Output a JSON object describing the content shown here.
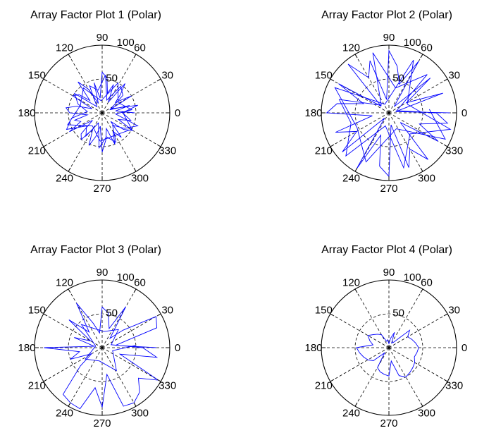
{
  "chart_data": [
    {
      "type": "polar",
      "title": "Array Factor Plot 1 (Polar)",
      "rlim": [
        0,
        100
      ],
      "radial_ticks": [
        50,
        100
      ],
      "angle_ticks": [
        0,
        30,
        60,
        90,
        120,
        150,
        180,
        210,
        240,
        270,
        300,
        330
      ],
      "grid": true,
      "line_color": "#0000ff",
      "series": [
        {
          "theta_deg": [
            0,
            8,
            15,
            22,
            30,
            38,
            45,
            52,
            60,
            68,
            75,
            82,
            90,
            98,
            105,
            112,
            120,
            128,
            135,
            142,
            150,
            158,
            165,
            172,
            180,
            188,
            195,
            202,
            210,
            218,
            225,
            232,
            240,
            248,
            255,
            262,
            270,
            278,
            285,
            292,
            300,
            308,
            315,
            322,
            330,
            338,
            345,
            352,
            0,
            12,
            25,
            40,
            55,
            70,
            85,
            100,
            115,
            130,
            145,
            160,
            175,
            190,
            205,
            220,
            235,
            250,
            265,
            280,
            295,
            310,
            325,
            340,
            355,
            6,
            33,
            62,
            95,
            127,
            161,
            199,
            233,
            266,
            298,
            331,
            3
          ],
          "r": [
            48,
            20,
            42,
            12,
            50,
            25,
            38,
            55,
            18,
            45,
            30,
            52,
            60,
            22,
            46,
            15,
            40,
            58,
            26,
            44,
            50,
            16,
            38,
            54,
            48,
            22,
            42,
            34,
            56,
            18,
            44,
            50,
            28,
            52,
            36,
            20,
            58,
            40,
            24,
            50,
            32,
            46,
            18,
            40,
            52,
            26,
            44,
            36,
            30,
            54,
            14,
            40,
            48,
            20,
            56,
            34,
            44,
            12,
            50,
            38,
            22,
            46,
            58,
            30,
            42,
            16,
            52,
            36,
            48,
            24,
            40,
            56,
            20,
            44,
            28,
            50,
            18,
            46,
            34,
            54,
            24,
            42,
            38,
            50,
            30
          ]
        }
      ]
    },
    {
      "type": "polar",
      "title": "Array Factor Plot 2 (Polar)",
      "rlim": [
        0,
        100
      ],
      "radial_ticks": [
        50,
        100
      ],
      "angle_ticks": [
        0,
        30,
        60,
        90,
        120,
        150,
        180,
        210,
        240,
        270,
        300,
        330
      ],
      "grid": true,
      "line_color": "#0000ff",
      "series": [
        {
          "theta_deg": [
            0,
            10,
            20,
            30,
            40,
            50,
            60,
            70,
            80,
            90,
            100,
            110,
            120,
            130,
            140,
            150,
            160,
            170,
            180,
            190,
            200,
            210,
            220,
            230,
            240,
            250,
            260,
            270,
            280,
            290,
            300,
            310,
            320,
            330,
            340,
            350,
            0,
            15,
            45,
            75,
            105,
            135,
            165,
            195,
            225,
            255,
            285,
            315,
            345,
            25,
            65,
            115,
            155,
            205,
            245,
            295,
            335,
            5
          ],
          "r": [
            90,
            10,
            85,
            30,
            80,
            12,
            88,
            45,
            70,
            92,
            20,
            82,
            60,
            94,
            15,
            86,
            40,
            78,
            92,
            25,
            84,
            55,
            90,
            10,
            96,
            35,
            80,
            94,
            18,
            86,
            62,
            90,
            22,
            84,
            48,
            88,
            70,
            12,
            80,
            38,
            92,
            16,
            76,
            58,
            90,
            20,
            84,
            44,
            94,
            30,
            86,
            14,
            88,
            52,
            80,
            26,
            92,
            60
          ]
        }
      ]
    },
    {
      "type": "polar",
      "title": "Array Factor Plot 3 (Polar)",
      "rlim": [
        0,
        100
      ],
      "radial_ticks": [
        50,
        100
      ],
      "angle_ticks": [
        0,
        30,
        60,
        90,
        120,
        150,
        180,
        210,
        240,
        270,
        300,
        330
      ],
      "grid": true,
      "line_color": "#0000ff",
      "series": [
        {
          "theta_deg": [
            0,
            10,
            20,
            30,
            40,
            50,
            60,
            70,
            80,
            90,
            100,
            110,
            120,
            130,
            140,
            150,
            160,
            170,
            180,
            190,
            200,
            210,
            220,
            230,
            240,
            250,
            260,
            270,
            280,
            290,
            300,
            310,
            320,
            330,
            340,
            350,
            0,
            18,
            48,
            84,
            132,
            166,
            214,
            258,
            302,
            344,
            4
          ],
          "r": [
            80,
            20,
            86,
            92,
            40,
            18,
            70,
            30,
            52,
            60,
            22,
            38,
            76,
            30,
            64,
            20,
            44,
            12,
            86,
            34,
            50,
            18,
            42,
            90,
            94,
            96,
            60,
            88,
            40,
            92,
            94,
            86,
            70,
            96,
            28,
            82,
            60,
            14,
            36,
            24,
            46,
            10,
            30,
            20,
            40,
            16,
            50
          ]
        }
      ]
    },
    {
      "type": "polar",
      "title": "Array Factor Plot 4 (Polar)",
      "rlim": [
        0,
        100
      ],
      "radial_ticks": [
        50,
        100
      ],
      "angle_ticks": [
        0,
        30,
        60,
        90,
        120,
        150,
        180,
        210,
        240,
        270,
        300,
        330
      ],
      "grid": true,
      "line_color": "#0000ff",
      "series": [
        {
          "theta_deg": [
            0,
            10,
            20,
            30,
            40,
            50,
            60,
            70,
            80,
            90,
            100,
            110,
            120,
            130,
            140,
            150,
            160,
            170,
            180,
            190,
            200,
            210,
            220,
            230,
            240,
            250,
            260,
            270,
            280,
            290,
            300,
            310,
            320,
            330,
            340,
            350,
            0
          ],
          "r": [
            44,
            40,
            36,
            32,
            40,
            10,
            8,
            24,
            14,
            6,
            12,
            10,
            22,
            26,
            30,
            36,
            30,
            24,
            48,
            44,
            40,
            36,
            30,
            10,
            34,
            38,
            40,
            42,
            20,
            44,
            50,
            48,
            46,
            44,
            40,
            42,
            44
          ]
        }
      ]
    }
  ]
}
